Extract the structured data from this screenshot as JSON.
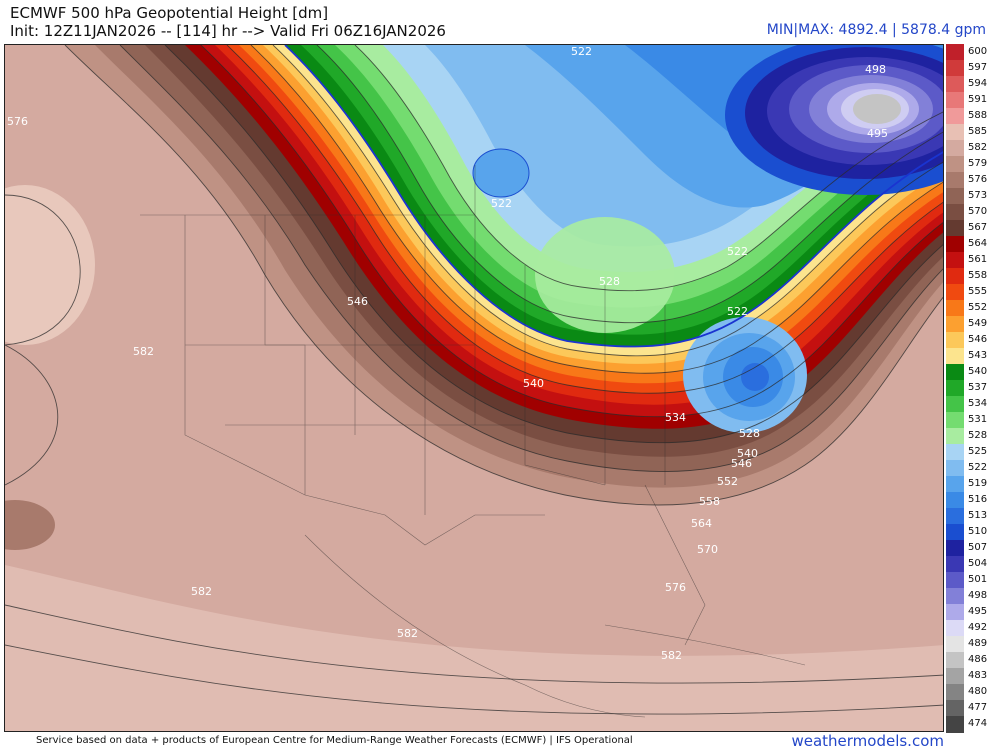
{
  "header": {
    "title": "ECMWF 500 hPa Geopotential Height [dm]",
    "subtitle": "Init: 12Z11JAN2026 -- [114] hr --> Valid Fri 06Z16JAN2026",
    "minmax": "MIN|MAX: 4892.4 | 5878.4 gpm"
  },
  "colorbar": {
    "levels": [
      {
        "label": "600",
        "color": "#c0202a"
      },
      {
        "label": "597",
        "color": "#d03a3a"
      },
      {
        "label": "594",
        "color": "#dd5a5a"
      },
      {
        "label": "591",
        "color": "#e87878"
      },
      {
        "label": "588",
        "color": "#f09a9a"
      },
      {
        "label": "585",
        "color": "#e8c0b4"
      },
      {
        "label": "582",
        "color": "#d4aaa0"
      },
      {
        "label": "579",
        "color": "#bf9284"
      },
      {
        "label": "576",
        "color": "#a87a6c"
      },
      {
        "label": "573",
        "color": "#906456"
      },
      {
        "label": "570",
        "color": "#7a4e42"
      },
      {
        "label": "567",
        "color": "#643a30"
      },
      {
        "label": "564",
        "color": "#a00000"
      },
      {
        "label": "561",
        "color": "#c41010"
      },
      {
        "label": "558",
        "color": "#e02a10"
      },
      {
        "label": "555",
        "color": "#f04a10"
      },
      {
        "label": "552",
        "color": "#f87818"
      },
      {
        "label": "549",
        "color": "#fca030"
      },
      {
        "label": "546",
        "color": "#fcc85a"
      },
      {
        "label": "543",
        "color": "#fce48e"
      },
      {
        "label": "540",
        "color": "#0a8a14"
      },
      {
        "label": "537",
        "color": "#20a828"
      },
      {
        "label": "534",
        "color": "#44c448"
      },
      {
        "label": "531",
        "color": "#74dc70"
      },
      {
        "label": "528",
        "color": "#a8eca0"
      },
      {
        "label": "525",
        "color": "#a8d4f4"
      },
      {
        "label": "522",
        "color": "#80bcf0"
      },
      {
        "label": "519",
        "color": "#58a4ec"
      },
      {
        "label": "516",
        "color": "#3a8ae6"
      },
      {
        "label": "513",
        "color": "#2a6ede"
      },
      {
        "label": "510",
        "color": "#1a4ed0"
      },
      {
        "label": "507",
        "color": "#1e22a0"
      },
      {
        "label": "504",
        "color": "#3a38b4"
      },
      {
        "label": "501",
        "color": "#5c5ac8"
      },
      {
        "label": "498",
        "color": "#8280d8"
      },
      {
        "label": "495",
        "color": "#aeaaea"
      },
      {
        "label": "492",
        "color": "#dcdaf6"
      },
      {
        "label": "489",
        "color": "#e4e4e4"
      },
      {
        "label": "486",
        "color": "#c4c4c4"
      },
      {
        "label": "483",
        "color": "#a4a4a4"
      },
      {
        "label": "480",
        "color": "#848484"
      },
      {
        "label": "477",
        "color": "#646464"
      },
      {
        "label": "474",
        "color": "#444444"
      }
    ]
  },
  "map": {
    "contour_labels": [
      {
        "text": "522"
      },
      {
        "text": "498"
      },
      {
        "text": "495"
      },
      {
        "text": "576"
      },
      {
        "text": "522"
      },
      {
        "text": "522"
      },
      {
        "text": "522"
      },
      {
        "text": "546"
      },
      {
        "text": "528"
      },
      {
        "text": "582"
      },
      {
        "text": "540"
      },
      {
        "text": "534"
      },
      {
        "text": "528"
      },
      {
        "text": "540"
      },
      {
        "text": "546"
      },
      {
        "text": "552"
      },
      {
        "text": "558"
      },
      {
        "text": "564"
      },
      {
        "text": "570"
      },
      {
        "text": "576"
      },
      {
        "text": "582"
      },
      {
        "text": "582"
      },
      {
        "text": "582"
      }
    ]
  },
  "footer": {
    "credit": "Service based on data + products of European Centre for Medium-Range Weather Forecasts (ECMWF) | IFS Operational",
    "brand": "weathermodels.com"
  }
}
